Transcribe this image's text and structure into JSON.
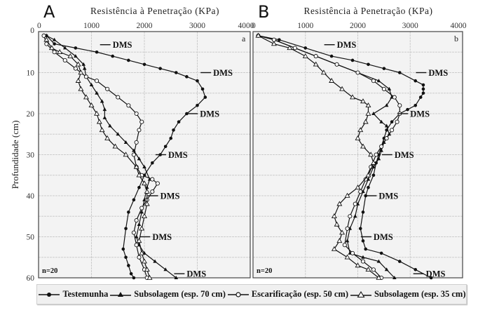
{
  "chart_data": [
    {
      "type": "line",
      "panel": "A",
      "title": "Resistência à Penetração (KPa)",
      "xlabel": "Resistência à Penetração (KPa)",
      "ylabel": "Profundidade (cm)",
      "corner_label": "a",
      "annotation_n": "n=20",
      "xlim": [
        0,
        4000
      ],
      "ylim": [
        60,
        0
      ],
      "xticks": [
        0,
        1000,
        2000,
        3000,
        4000
      ],
      "yticks": [
        0,
        10,
        20,
        30,
        40,
        50,
        60
      ],
      "grid": true,
      "dms_markers": [
        {
          "x": 1400,
          "y": 3.2,
          "label": "DMS"
        },
        {
          "x": 3300,
          "y": 10,
          "label": "DMS"
        },
        {
          "x": 3050,
          "y": 20,
          "label": "DMS"
        },
        {
          "x": 2450,
          "y": 30,
          "label": "DMS"
        },
        {
          "x": 2300,
          "y": 40,
          "label": "DMS"
        },
        {
          "x": 2150,
          "y": 50,
          "label": "DMS"
        },
        {
          "x": 2800,
          "y": 59,
          "label": "DMS"
        }
      ],
      "series": [
        {
          "name": "Testemunha",
          "marker": "filled-circle",
          "x": [
            150,
            300,
            700,
            1100,
            1400,
            1700,
            2000,
            2300,
            2600,
            2800,
            3000,
            3100,
            3150,
            3000,
            2800,
            2650,
            2550,
            2500,
            2400,
            2300,
            2150,
            2000,
            1900,
            1800,
            1700,
            1650,
            1600,
            1650,
            1700,
            1750,
            1800
          ],
          "y": [
            1,
            3,
            4,
            5,
            6,
            7,
            8,
            9,
            10,
            11,
            12,
            14,
            16,
            18,
            20,
            22,
            24,
            26,
            28,
            30,
            32,
            35,
            38,
            41,
            44,
            48,
            53,
            55,
            57,
            59,
            60
          ]
        },
        {
          "name": "Subsolagem (esp. 70 cm)",
          "marker": "filled-triangle",
          "x": [
            150,
            300,
            500,
            700,
            850,
            870,
            900,
            1000,
            1100,
            1200,
            1250,
            1250,
            1350,
            1500,
            1650,
            1800,
            1900,
            2000,
            2100,
            2050,
            2000,
            1950,
            1900,
            1850,
            1900,
            2000,
            2200,
            2400,
            2600
          ],
          "y": [
            1,
            2,
            4,
            6,
            8,
            9,
            11,
            13,
            15,
            17,
            19,
            21,
            23,
            25,
            27,
            29,
            31,
            33,
            36,
            38,
            41,
            44,
            47,
            50,
            52,
            54,
            56,
            58,
            60
          ]
        },
        {
          "name": "Escarificação (esp. 50 cm)",
          "marker": "open-circle",
          "x": [
            100,
            150,
            300,
            500,
            700,
            900,
            1100,
            1300,
            1500,
            1700,
            1850,
            1950,
            1900,
            1850,
            1800,
            1850,
            1950,
            2150,
            2250,
            2150,
            2050,
            1950,
            1850,
            1800,
            1850,
            1900,
            2000,
            2050
          ],
          "y": [
            1,
            3,
            5,
            7,
            9,
            11,
            12,
            14,
            16,
            18,
            20,
            22,
            24,
            27,
            30,
            33,
            35,
            36,
            37,
            39,
            41,
            43,
            46,
            49,
            52,
            55,
            58,
            60
          ]
        },
        {
          "name": "Subsolagem (esp. 35 cm)",
          "marker": "open-triangle",
          "x": [
            150,
            250,
            400,
            600,
            750,
            800,
            750,
            800,
            900,
            1000,
            1100,
            1150,
            1200,
            1300,
            1450,
            1650,
            1850,
            1900,
            2000,
            2050,
            2050,
            2000,
            1950,
            1900,
            1950,
            2000,
            2050,
            2100
          ],
          "y": [
            2,
            4,
            5,
            6,
            8,
            10,
            12,
            14,
            16,
            18,
            20,
            22,
            24,
            26,
            28,
            30,
            33,
            35,
            37,
            39,
            42,
            45,
            48,
            51,
            54,
            56,
            58,
            60
          ]
        }
      ]
    },
    {
      "type": "line",
      "panel": "B",
      "title": "Resistência à Penetração (KPa)",
      "xlabel": "Resistência à Penetração (KPa)",
      "ylabel": "Profundidade (cm)",
      "corner_label": "b",
      "annotation_n": "n=20",
      "xlim": [
        0,
        4000
      ],
      "ylim": [
        60,
        0
      ],
      "xticks": [
        0,
        1000,
        2000,
        3000,
        4000
      ],
      "yticks": [
        0,
        10,
        20,
        30,
        40,
        50,
        60
      ],
      "grid": true,
      "dms_markers": [
        {
          "x": 1600,
          "y": 3.2,
          "label": "DMS"
        },
        {
          "x": 3350,
          "y": 10,
          "label": "DMS"
        },
        {
          "x": 3000,
          "y": 20,
          "label": "DMS"
        },
        {
          "x": 2700,
          "y": 30,
          "label": "DMS"
        },
        {
          "x": 2400,
          "y": 40,
          "label": "DMS"
        },
        {
          "x": 2300,
          "y": 50,
          "label": "DMS"
        },
        {
          "x": 3300,
          "y": 59,
          "label": "DMS"
        }
      ],
      "series": [
        {
          "name": "Testemunha",
          "marker": "filled-circle",
          "x": [
            100,
            500,
            1000,
            1500,
            1900,
            2200,
            2500,
            2800,
            3100,
            3250,
            3250,
            3250,
            3200,
            3100,
            2950,
            2800,
            2650,
            2550,
            2500,
            2450,
            2400,
            2350,
            2300,
            2200,
            2150,
            2100,
            2050,
            2100,
            2150,
            2450,
            2800,
            3100,
            3400
          ],
          "y": [
            1,
            2,
            4,
            6,
            7,
            8,
            9,
            10,
            12,
            13,
            14,
            15,
            16,
            18,
            19,
            20,
            22,
            24,
            26,
            28,
            30,
            32,
            35,
            38,
            40,
            44,
            48,
            51,
            53,
            54,
            56,
            58,
            60
          ]
        },
        {
          "name": "Subsolagem (esp. 70 cm)",
          "marker": "filled-triangle",
          "x": [
            100,
            400,
            800,
            1200,
            1600,
            2000,
            2400,
            2600,
            2650,
            2550,
            2300,
            2450,
            2550,
            2600,
            2500,
            2450,
            2400,
            2300,
            2200,
            2100,
            2000,
            1950,
            1850,
            1800,
            1850,
            2100,
            2400,
            2550,
            2700
          ],
          "y": [
            1,
            2,
            4,
            6,
            8,
            10,
            12,
            14,
            16,
            18,
            20,
            22,
            23,
            25,
            27,
            29,
            31,
            33,
            36,
            39,
            42,
            45,
            48,
            51,
            54,
            55,
            56,
            58,
            60
          ]
        },
        {
          "name": "Escarificação (esp. 50 cm)",
          "marker": "open-circle",
          "x": [
            100,
            400,
            800,
            1200,
            1600,
            2000,
            2300,
            2500,
            2700,
            2800,
            2800,
            2750,
            2650,
            2550,
            2450,
            2350,
            2250,
            2150,
            2050,
            1950,
            1850,
            1800,
            1750,
            1900,
            2100,
            2300,
            2450
          ],
          "y": [
            1,
            2,
            4,
            6,
            8,
            10,
            12,
            14,
            16,
            18,
            20,
            22,
            24,
            26,
            28,
            30,
            33,
            36,
            39,
            42,
            45,
            48,
            52,
            54,
            56,
            58,
            60
          ]
        },
        {
          "name": "Subsolagem (esp. 35 cm)",
          "marker": "open-triangle",
          "x": [
            100,
            400,
            700,
            1000,
            1200,
            1350,
            1500,
            1700,
            1900,
            2100,
            2200,
            2200,
            2150,
            2050,
            2000,
            2100,
            2250,
            2300,
            2200,
            2000,
            1800,
            1650,
            1550,
            1600,
            1700,
            1650,
            1550,
            1800,
            2000,
            2200,
            2400
          ],
          "y": [
            1,
            3,
            4,
            6,
            8,
            10,
            12,
            14,
            16,
            17,
            18,
            20,
            22,
            24,
            26,
            28,
            30,
            32,
            35,
            38,
            40,
            42,
            45,
            47,
            49,
            51,
            53,
            55,
            57,
            58,
            60
          ]
        }
      ]
    }
  ],
  "panels": [
    {
      "letter": "A",
      "title": "Resistência à Penetração (KPa)",
      "corner": "a",
      "n": "n=20"
    },
    {
      "letter": "B",
      "title": "Resistência à Penetração (KPa)",
      "corner": "b",
      "n": "n=20"
    }
  ],
  "ylabel": "Profundidade (cm)",
  "legend": [
    {
      "label": "Testemunha",
      "marker": "filled-circle"
    },
    {
      "label": "Subsolagem (esp. 70 cm)",
      "marker": "filled-triangle"
    },
    {
      "label": "Escarificação (esp. 50 cm)",
      "marker": "open-circle"
    },
    {
      "label": "Subsolagem (esp. 35 cm)",
      "marker": "open-triangle"
    }
  ],
  "colors": {
    "plot_bg": "#f3f3f3",
    "grid": "#cccccc",
    "line": "#111111",
    "legend_bg": "#f0f0f0"
  }
}
